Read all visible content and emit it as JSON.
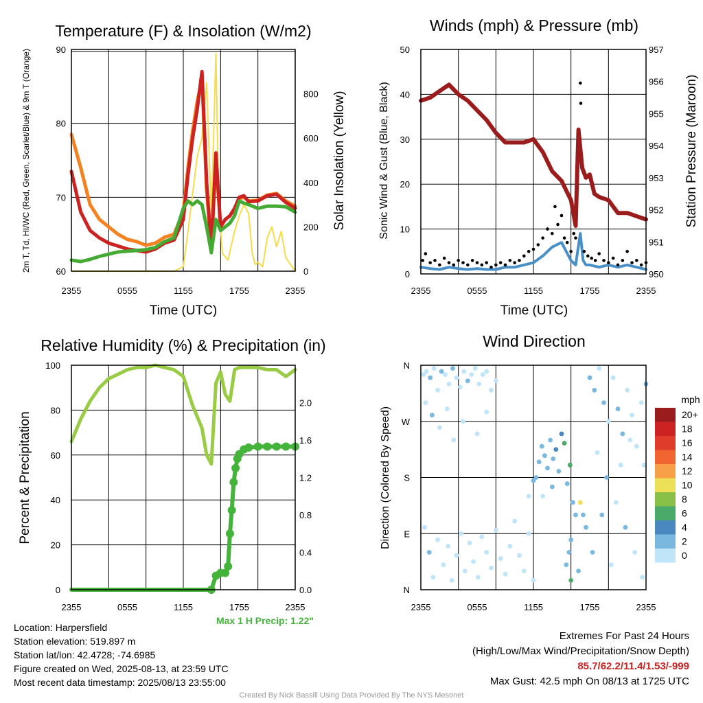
{
  "chart_data": [
    {
      "type": "line",
      "title": "Temperature (F) & Insolation (W/m2)",
      "xlabel": "Time (UTC)",
      "ylabel": "2m T, Td, HI/WC (Red, Green, Scarlet/Blue) & 9m T (Orange)",
      "y2label": "Solar Insolation (Yellow)",
      "xticks": [
        "2355",
        "0555",
        "1155",
        "1755",
        "2355"
      ],
      "ylim": [
        60,
        90
      ],
      "yticks": [
        60,
        70,
        80,
        90
      ],
      "y2lim": [
        0,
        1000
      ],
      "y2ticks": [
        0,
        200,
        400,
        600,
        800
      ],
      "x": [
        0,
        1,
        2,
        3,
        4,
        5,
        6,
        7,
        8,
        9,
        10,
        11,
        12,
        12.5,
        13,
        13.5,
        14,
        14.5,
        15,
        15.5,
        16,
        16.5,
        17,
        17.5,
        18,
        18.5,
        19,
        20,
        21,
        22,
        23,
        24
      ],
      "series": [
        {
          "color": "#f58220",
          "values": [
            78.5,
            74,
            69,
            67,
            66,
            65,
            64.3,
            64,
            63.5,
            63.8,
            64.6,
            65,
            68,
            74,
            79,
            83,
            86,
            71,
            63,
            75,
            66,
            67,
            67.5,
            68.5,
            69.8,
            70,
            69.5,
            69.6,
            70.3,
            70.5,
            69.5,
            68.8
          ]
        },
        {
          "color": "#cc2222",
          "values": [
            73.5,
            68,
            65.5,
            64.5,
            63.8,
            63.4,
            63,
            62.8,
            62.6,
            63,
            63.8,
            64.2,
            67,
            73,
            78,
            82,
            87,
            72,
            63,
            76,
            66,
            67,
            67.5,
            68.5,
            70,
            70.2,
            69.4,
            69.5,
            70.2,
            70.4,
            69.3,
            68.5
          ]
        },
        {
          "color": "#44aa33",
          "values": [
            61.5,
            61.3,
            61.6,
            62,
            62.3,
            62.6,
            62.7,
            62.8,
            62.9,
            63.2,
            64,
            64.5,
            68.5,
            69.5,
            69,
            69.5,
            69,
            66,
            62.5,
            67,
            65.5,
            66,
            66.5,
            67.5,
            69.5,
            69.2,
            69,
            68.5,
            68.8,
            68.8,
            68.7,
            68
          ]
        }
      ],
      "insolation": {
        "color": "#f5dd4a",
        "x": [
          0,
          7,
          8,
          9,
          10,
          11,
          12,
          12.5,
          13,
          13.5,
          14,
          14.5,
          15,
          15.5,
          15.8,
          16.2,
          16.8,
          17,
          17.5,
          18,
          18.5,
          19,
          19.4,
          19.7,
          20,
          20.5,
          21,
          21.5,
          22,
          22.5,
          23,
          23.5,
          24
        ],
        "values": [
          0,
          0,
          0,
          0,
          0,
          0,
          20,
          180,
          350,
          520,
          600,
          850,
          250,
          980,
          300,
          80,
          50,
          90,
          180,
          250,
          300,
          260,
          80,
          30,
          40,
          20,
          150,
          200,
          110,
          180,
          60,
          30,
          0
        ]
      }
    },
    {
      "type": "line",
      "title": "Winds (mph) & Pressure (mb)",
      "xlabel": "Time (UTC)",
      "ylabel": "Sonic Wind & Gust (Blue, Black)",
      "y2label": "Station Pressure (Maroon)",
      "xticks": [
        "2355",
        "0555",
        "1155",
        "1755",
        "2355"
      ],
      "ylim": [
        0,
        50
      ],
      "yticks": [
        0,
        10,
        20,
        30,
        40,
        50
      ],
      "y2lim": [
        950,
        957
      ],
      "y2ticks": [
        950,
        951,
        952,
        953,
        954,
        955,
        956,
        957
      ],
      "pressure": {
        "color": "#9b1c1c",
        "x": [
          0,
          1,
          2,
          3,
          4,
          5,
          6,
          7,
          8,
          9,
          10,
          11,
          12,
          13,
          14,
          15,
          15.5,
          16,
          16.5,
          16.8,
          17.2,
          17.6,
          18,
          18.5,
          19,
          20,
          21,
          22,
          23,
          24
        ],
        "values": [
          955.4,
          955.5,
          955.7,
          955.9,
          955.6,
          955.4,
          955.1,
          954.8,
          954.4,
          954.1,
          954.1,
          954.1,
          954.2,
          953.8,
          953.2,
          952.9,
          952.6,
          952.3,
          951.5,
          954.5,
          953.3,
          953.0,
          953.1,
          952.5,
          952.4,
          952.3,
          951.9,
          951.9,
          951.8,
          951.7
        ]
      },
      "wind_speed": {
        "color": "#4a90c8",
        "x": [
          0,
          1,
          2,
          3,
          4,
          5,
          6,
          7,
          8,
          9,
          10,
          11,
          12,
          13,
          14,
          15,
          15.5,
          16,
          16.5,
          17,
          17.3,
          17.6,
          18,
          19,
          20,
          21,
          22,
          23,
          24
        ],
        "values": [
          1.5,
          1.2,
          1,
          1.5,
          1.2,
          1,
          1.2,
          1,
          1,
          1.5,
          1.5,
          2,
          2.5,
          4,
          6,
          7,
          5,
          3,
          2,
          9,
          3,
          2,
          2,
          1.5,
          2,
          1.5,
          2,
          1.5,
          1
        ]
      },
      "gust_points": [
        [
          0.2,
          3
        ],
        [
          0.5,
          4.5
        ],
        [
          1,
          2.5
        ],
        [
          1.5,
          3
        ],
        [
          2,
          2
        ],
        [
          2.5,
          3.5
        ],
        [
          3,
          2.5
        ],
        [
          3.5,
          2
        ],
        [
          4,
          3
        ],
        [
          4.5,
          2.5
        ],
        [
          5,
          2
        ],
        [
          5.5,
          3
        ],
        [
          6,
          2.5
        ],
        [
          6.5,
          2
        ],
        [
          7,
          2.5
        ],
        [
          7.5,
          1.5
        ],
        [
          8,
          2
        ],
        [
          8.5,
          2.5
        ],
        [
          9,
          2
        ],
        [
          9.5,
          3
        ],
        [
          10,
          2.5
        ],
        [
          10.5,
          3
        ],
        [
          11,
          4
        ],
        [
          11.5,
          5
        ],
        [
          12,
          5.5
        ],
        [
          12.5,
          6.5
        ],
        [
          13,
          8
        ],
        [
          13.5,
          10
        ],
        [
          14,
          9
        ],
        [
          14.3,
          15
        ],
        [
          14.6,
          11
        ],
        [
          15,
          13
        ],
        [
          15.3,
          8
        ],
        [
          15.6,
          7
        ],
        [
          16,
          5
        ],
        [
          16.3,
          9
        ],
        [
          16.5,
          8
        ],
        [
          17,
          42.5
        ],
        [
          17.05,
          38
        ],
        [
          17.4,
          5
        ],
        [
          17.8,
          4
        ],
        [
          18.2,
          3.5
        ],
        [
          18.6,
          3
        ],
        [
          19,
          4.5
        ],
        [
          19.5,
          3
        ],
        [
          20,
          2.5
        ],
        [
          20.5,
          3.5
        ],
        [
          21,
          2
        ],
        [
          21.5,
          3
        ],
        [
          22,
          5
        ],
        [
          22.5,
          2.5
        ],
        [
          23,
          3
        ],
        [
          23.5,
          2
        ],
        [
          24,
          2.5
        ]
      ]
    },
    {
      "type": "line",
      "title": "Relative Humidity (%) & Precipitation (in)",
      "ylabel": "Percent & Precipitation",
      "xticks": [
        "2355",
        "0555",
        "1155",
        "1755",
        "2355"
      ],
      "ylim": [
        0,
        100
      ],
      "yticks": [
        0,
        20,
        40,
        60,
        80,
        100
      ],
      "y2lim": [
        0,
        2.4
      ],
      "y2ticks": [
        "0.0",
        "0.4",
        "0.8",
        "1.2",
        "1.6",
        "2.0"
      ],
      "note": "Max 1 H Precip: 1.22\"",
      "humidity": {
        "color": "#99cc44",
        "x": [
          0,
          1,
          2,
          3,
          4,
          5,
          6,
          7,
          8,
          9,
          10,
          11,
          12,
          13,
          14,
          14.5,
          15,
          15.5,
          16,
          16.5,
          17,
          17.5,
          18,
          19,
          20,
          21,
          22,
          23,
          24
        ],
        "values": [
          66,
          76,
          84,
          90,
          94,
          96,
          98,
          99,
          99,
          100,
          99,
          98,
          95,
          82,
          72,
          60,
          56,
          92,
          97,
          87,
          84,
          98,
          99,
          99,
          99,
          98,
          98,
          95,
          98
        ]
      },
      "precipitation": {
        "color": "#44b33a",
        "x": [
          0,
          1,
          2,
          3,
          4,
          5,
          6,
          7,
          8,
          9,
          10,
          11,
          12,
          13,
          14,
          15,
          15.5,
          16,
          16.5,
          16.8,
          17,
          17.2,
          17.4,
          17.6,
          17.8,
          18,
          18.5,
          19,
          20,
          21,
          22,
          23,
          24
        ],
        "values": [
          0,
          0,
          0,
          0,
          0,
          0,
          0,
          0,
          0,
          0,
          0,
          0,
          0,
          0,
          0,
          0,
          0.15,
          0.18,
          0.18,
          0.25,
          0.6,
          0.85,
          1.15,
          1.3,
          1.4,
          1.45,
          1.5,
          1.52,
          1.53,
          1.53,
          1.53,
          1.53,
          1.53
        ]
      }
    },
    {
      "type": "scatter",
      "title": "Wind Direction",
      "ylabel": "Direction (Colored By Speed)",
      "xticks": [
        "2355",
        "0555",
        "1155",
        "1755",
        "2355"
      ],
      "yticks": [
        "N",
        "E",
        "S",
        "W",
        "N"
      ],
      "colorbar": {
        "title": "mph",
        "labels": [
          "20+",
          "18",
          "16",
          "14",
          "12",
          "10",
          "8",
          "6",
          "4",
          "2",
          "0"
        ],
        "colors": [
          "#9b1c1c",
          "#cc2222",
          "#e03c2c",
          "#f06530",
          "#f8a048",
          "#ece058",
          "#88c048",
          "#4aaa6a",
          "#4a88c0",
          "#7ab8e0",
          "#c0e4f8"
        ]
      },
      "points": [
        [
          0.3,
          345,
          1
        ],
        [
          0.6,
          350,
          1
        ],
        [
          1.0,
          340,
          2
        ],
        [
          1.4,
          355,
          1
        ],
        [
          1.8,
          320,
          1
        ],
        [
          2.2,
          350,
          2
        ],
        [
          2.6,
          345,
          1
        ],
        [
          3.0,
          330,
          1
        ],
        [
          3.4,
          355,
          2
        ],
        [
          3.8,
          340,
          1
        ],
        [
          4.2,
          325,
          1
        ],
        [
          4.6,
          350,
          1
        ],
        [
          5.0,
          335,
          2
        ],
        [
          5.4,
          345,
          1
        ],
        [
          5.8,
          355,
          1
        ],
        [
          6.2,
          330,
          1
        ],
        [
          6.6,
          345,
          1
        ],
        [
          7.0,
          350,
          1
        ],
        [
          7.5,
          320,
          1
        ],
        [
          8.0,
          335,
          1
        ],
        [
          0.5,
          300,
          1
        ],
        [
          1.2,
          280,
          2
        ],
        [
          2.0,
          260,
          1
        ],
        [
          2.8,
          290,
          1
        ],
        [
          3.5,
          240,
          1
        ],
        [
          4.5,
          270,
          1
        ],
        [
          6.0,
          250,
          1
        ],
        [
          7.0,
          285,
          1
        ],
        [
          0.4,
          100,
          1
        ],
        [
          0.9,
          60,
          2
        ],
        [
          1.3,
          20,
          1
        ],
        [
          1.8,
          80,
          1
        ],
        [
          2.4,
          40,
          1
        ],
        [
          2.9,
          70,
          1
        ],
        [
          3.3,
          15,
          1
        ],
        [
          3.8,
          55,
          1
        ],
        [
          4.3,
          90,
          1
        ],
        [
          4.7,
          30,
          1
        ],
        [
          5.2,
          75,
          1
        ],
        [
          5.6,
          45,
          1
        ],
        [
          6.1,
          20,
          1
        ],
        [
          6.5,
          85,
          1
        ],
        [
          7.0,
          60,
          1
        ],
        [
          7.5,
          35,
          1
        ],
        [
          8.0,
          95,
          1
        ],
        [
          8.5,
          50,
          1
        ],
        [
          9.0,
          25,
          1
        ],
        [
          9.5,
          70,
          1
        ],
        [
          10.0,
          110,
          1
        ],
        [
          10.5,
          55,
          1
        ],
        [
          11.0,
          30,
          1
        ],
        [
          11.5,
          90,
          1
        ],
        [
          12.0,
          15,
          1
        ],
        [
          12.3,
          180,
          2
        ],
        [
          12.6,
          205,
          3
        ],
        [
          12.9,
          230,
          2
        ],
        [
          13.2,
          215,
          3
        ],
        [
          13.5,
          195,
          3
        ],
        [
          13.8,
          240,
          3
        ],
        [
          14.1,
          210,
          3
        ],
        [
          14.4,
          225,
          4
        ],
        [
          14.7,
          190,
          3
        ],
        [
          15.0,
          250,
          4
        ],
        [
          15.3,
          235,
          6
        ],
        [
          15.6,
          170,
          3
        ],
        [
          15.9,
          200,
          6
        ],
        [
          16.2,
          140,
          3
        ],
        [
          16.5,
          120,
          2
        ],
        [
          16.8,
          30,
          3
        ],
        [
          17.0,
          140,
          10
        ],
        [
          17.3,
          120,
          3
        ],
        [
          17.6,
          100,
          2
        ],
        [
          11.5,
          150,
          1
        ],
        [
          12.0,
          175,
          2
        ],
        [
          13.0,
          150,
          1
        ],
        [
          14.0,
          165,
          3
        ],
        [
          16.0,
          80,
          3
        ],
        [
          15.5,
          40,
          3
        ],
        [
          16.0,
          15,
          6
        ],
        [
          15.8,
          60,
          2
        ],
        [
          18.0,
          340,
          2
        ],
        [
          18.5,
          320,
          2
        ],
        [
          19.0,
          355,
          1
        ],
        [
          19.5,
          300,
          2
        ],
        [
          20.0,
          270,
          1
        ],
        [
          20.5,
          340,
          1
        ],
        [
          21.0,
          290,
          2
        ],
        [
          21.5,
          250,
          2
        ],
        [
          22.0,
          320,
          1
        ],
        [
          22.5,
          280,
          1
        ],
        [
          23.0,
          230,
          1
        ],
        [
          23.5,
          300,
          1
        ],
        [
          24.0,
          330,
          2
        ],
        [
          23.8,
          200,
          1
        ],
        [
          18.8,
          220,
          1
        ],
        [
          19.8,
          180,
          2
        ],
        [
          20.8,
          140,
          1
        ],
        [
          21.8,
          100,
          2
        ],
        [
          22.8,
          60,
          1
        ],
        [
          23.6,
          20,
          1
        ],
        [
          18.3,
          60,
          2
        ],
        [
          19.3,
          120,
          2
        ],
        [
          20.3,
          40,
          1
        ],
        [
          21.3,
          200,
          1
        ],
        [
          22.3,
          240,
          1
        ]
      ]
    }
  ],
  "info": {
    "location": "Location: Harpersfield",
    "elevation": "Station elevation: 519.897 m",
    "latlon": "Station lat/lon: 42.4728; -74.6985",
    "created": "Figure created on Wed, 2025-08-13, at 23:59 UTC",
    "recent": "Most recent data timestamp: 2025/08/13 23:55:00"
  },
  "extremes": {
    "title": "Extremes For Past 24 Hours",
    "subtitle": "(High/Low/Max Wind/Precipitation/Snow Depth)",
    "values": "85.7/62.2/11.4/1.53/-999",
    "values_color": "#cc2222",
    "gust": "Max Gust: 42.5 mph On 08/13 at 1725 UTC"
  },
  "credit": "Created By Nick Bassill Using Data Provided By The NYS Mesonet"
}
